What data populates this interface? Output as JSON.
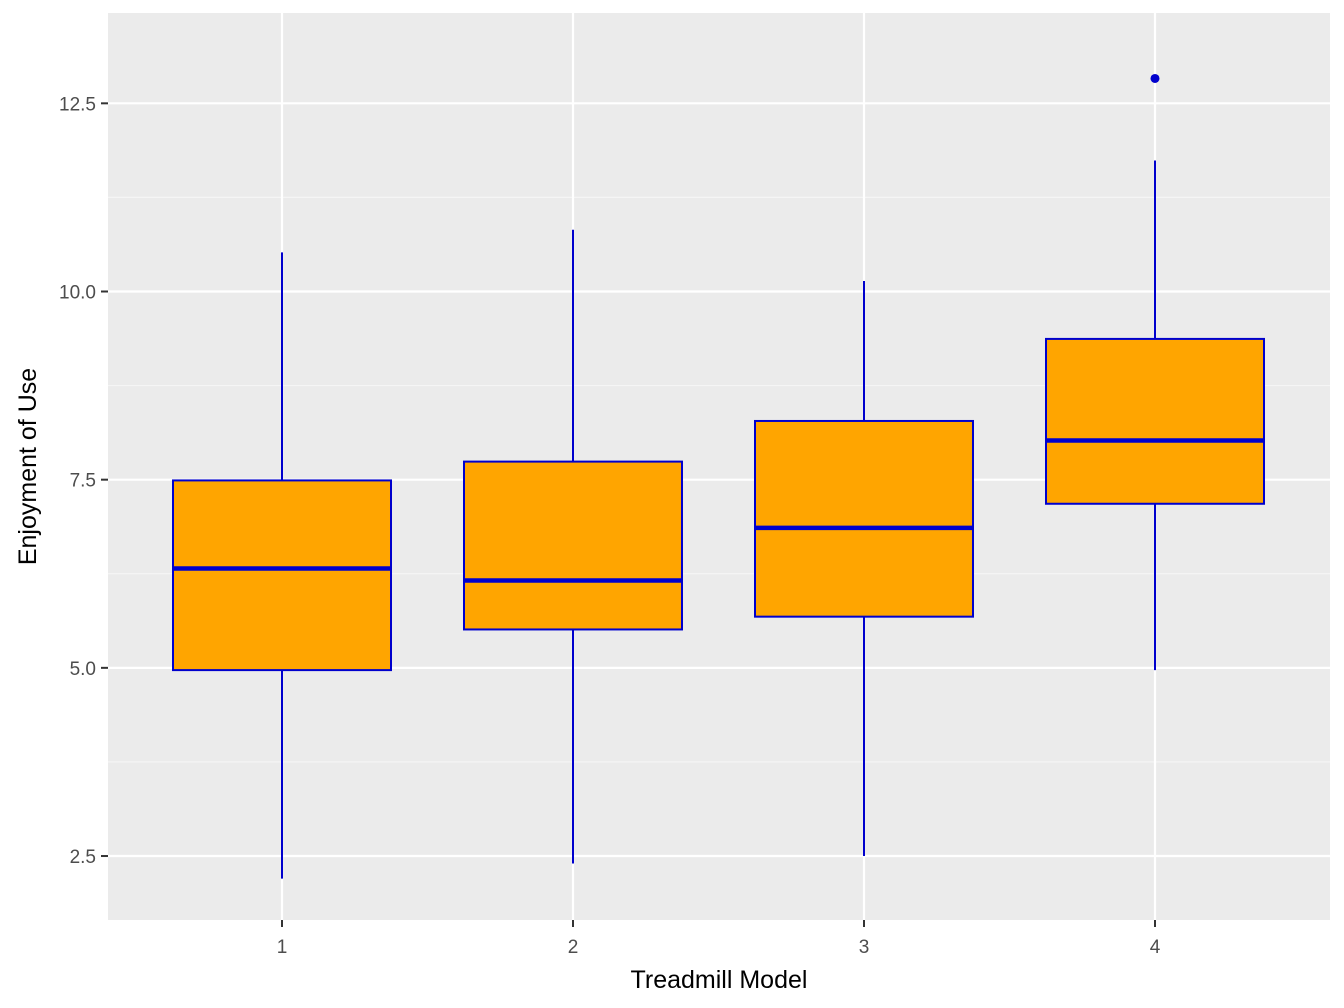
{
  "chart_data": {
    "type": "boxplot",
    "title": "",
    "xlabel": "Treadmill Model",
    "ylabel": "Enjoyment of Use",
    "categories": [
      "1",
      "2",
      "3",
      "4"
    ],
    "ylim": [
      1.65,
      13.7
    ],
    "y_ticks": [
      2.5,
      5.0,
      7.5,
      10.0,
      12.5
    ],
    "y_tick_labels": [
      "2.5",
      "5.0",
      "7.5",
      "10.0",
      "12.5"
    ],
    "grid": true,
    "boxes": [
      {
        "category": "1",
        "whisker_low": 2.2,
        "q1": 4.97,
        "median": 6.32,
        "q3": 7.49,
        "whisker_high": 10.52,
        "outliers": []
      },
      {
        "category": "2",
        "whisker_low": 2.4,
        "q1": 5.51,
        "median": 6.16,
        "q3": 7.74,
        "whisker_high": 10.82,
        "outliers": []
      },
      {
        "category": "3",
        "whisker_low": 2.5,
        "q1": 5.68,
        "median": 6.86,
        "q3": 8.28,
        "whisker_high": 10.14,
        "outliers": []
      },
      {
        "category": "4",
        "whisker_low": 4.97,
        "q1": 7.18,
        "median": 8.02,
        "q3": 9.37,
        "whisker_high": 11.74,
        "outliers": [
          12.83
        ]
      }
    ],
    "colors": {
      "box_fill": "#FFA500",
      "box_line": "#0000CD",
      "panel_bg": "#EBEBEB",
      "grid_major": "#FFFFFF",
      "grid_minor": "#F5F5F5",
      "tick_mark": "#333333"
    }
  }
}
